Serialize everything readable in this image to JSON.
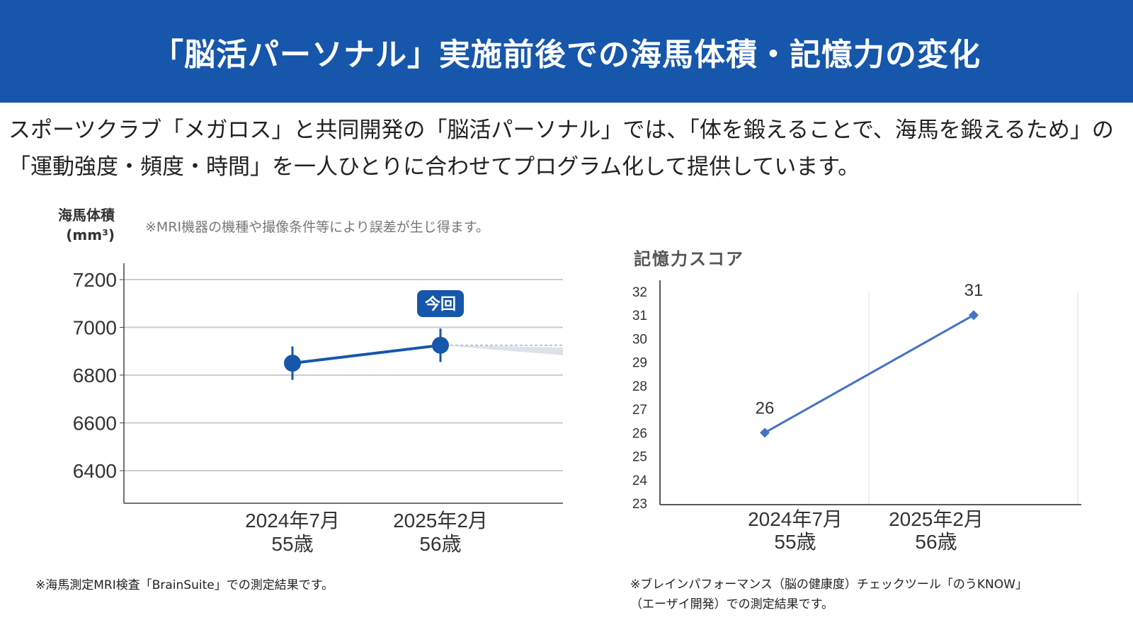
{
  "header": {
    "title": "「脳活パーソナル」実施前後での海馬体積・記憶力の変化"
  },
  "intro": "スポーツクラブ「メガロス」と共同開発の「脳活パーソナル」では、「体を鍛えることで、海馬を鍛えるため」の「運動強度・頻度・時間」を一人ひとりに合わせてプログラム化して提供しています。",
  "chart_data": [
    {
      "type": "line",
      "ylabel": "海馬体積",
      "yunit": "(mm³)",
      "note": "※MRI機器の機種や撮像条件等により誤差が生じ得ます。",
      "categories": [
        [
          "2024年7月",
          "55歳"
        ],
        [
          "2025年2月",
          "56歳"
        ]
      ],
      "values": [
        6850,
        6925
      ],
      "error": [
        70,
        70
      ],
      "yticks": [
        6400,
        6600,
        6800,
        7000,
        7200
      ],
      "ylim": [
        6260,
        7270
      ],
      "highlight_label": "今回",
      "grid": true,
      "color": "#1656ab",
      "footnote": "※海馬測定MRI検査「BrainSuite」での測定結果です。"
    },
    {
      "type": "line",
      "title": "記憶力スコア",
      "categories": [
        [
          "2024年7月",
          "55歳"
        ],
        [
          "2025年2月",
          "56歳"
        ]
      ],
      "values": [
        26,
        31
      ],
      "data_labels": [
        "26",
        "31"
      ],
      "yticks": [
        23,
        24,
        25,
        26,
        27,
        28,
        29,
        30,
        31,
        32
      ],
      "ylim": [
        23,
        32
      ],
      "color": "#4472c4",
      "footnote": [
        "※ブレインパフォーマンス（脳の健康度）チェックツール「のうKNOW」",
        "（エーザイ開発）での測定結果です。"
      ]
    }
  ]
}
